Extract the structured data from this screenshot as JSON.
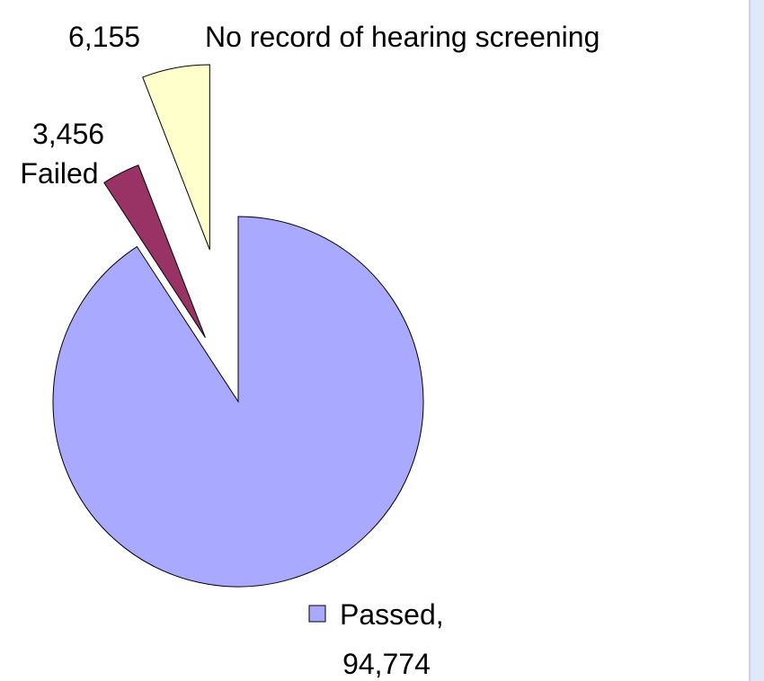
{
  "chart_data": {
    "type": "pie",
    "categories": [
      "Passed,",
      "Failed",
      "No record of hearing screening"
    ],
    "values": [
      94774,
      3456,
      6155
    ],
    "value_labels": [
      "94,774",
      "3,456",
      "6,155"
    ],
    "colors": [
      "#a9a9ff",
      "#993366",
      "#ffffcc"
    ]
  }
}
